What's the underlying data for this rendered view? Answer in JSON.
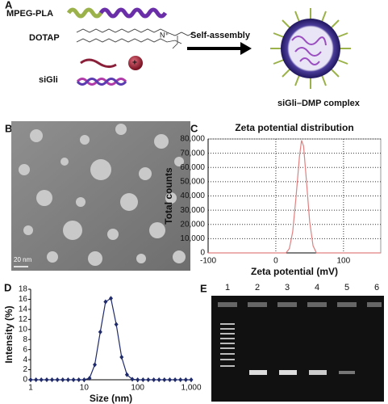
{
  "panels": {
    "A": {
      "label": "A",
      "mpeg": "MPEG-PLA",
      "dotap": "DOTAP",
      "sigli": "siGli",
      "arrow": "Self-assembly",
      "complex": "siGli–DMP complex"
    },
    "B": {
      "label": "B",
      "scale": "20 nm"
    },
    "C": {
      "label": "C"
    },
    "D": {
      "label": "D"
    },
    "E": {
      "label": "E",
      "lanes": [
        "1",
        "2",
        "3",
        "4",
        "5",
        "6"
      ]
    }
  },
  "chart_data": [
    {
      "type": "line",
      "title": "Zeta potential distribution",
      "x_label": "Zeta potential (mV)",
      "y_label": "Total counts",
      "x": [
        -100,
        15,
        20,
        25,
        30,
        35,
        38,
        41,
        45,
        50,
        55,
        60,
        155
      ],
      "values": [
        0,
        0,
        3000,
        15000,
        40000,
        68000,
        79000,
        75000,
        52000,
        22000,
        5000,
        0,
        0
      ],
      "color": "#e08080",
      "xlim": [
        -100,
        155
      ],
      "xticks": [
        -100,
        0,
        100
      ],
      "ylim": [
        0,
        80000
      ],
      "yticks": [
        0,
        {
          "value": 10000,
          "label": "10,000"
        },
        {
          "value": 20000,
          "label": "20,000"
        },
        {
          "value": 30000,
          "label": "30,000"
        },
        {
          "value": 40000,
          "label": "40,000"
        },
        {
          "value": 50000,
          "label": "50,000"
        },
        {
          "value": 60000,
          "label": "60,000"
        },
        {
          "value": 70000,
          "label": "70,000"
        },
        {
          "value": 80000,
          "label": "80,000"
        }
      ],
      "grid": true,
      "log_x": false,
      "markers": false
    },
    {
      "type": "line",
      "x_label": "Size (nm)",
      "y_label": "Intensity (%)",
      "x": [
        1,
        1.26,
        1.58,
        2,
        2.51,
        3.16,
        3.98,
        5.01,
        6.31,
        7.94,
        10,
        12.6,
        15.8,
        20,
        25.1,
        31.6,
        39.8,
        50.1,
        63.1,
        79.4,
        100,
        126,
        158,
        200,
        251,
        316,
        398,
        501,
        631,
        794,
        1000
      ],
      "values": [
        0,
        0,
        0,
        0,
        0,
        0,
        0,
        0,
        0,
        0,
        0,
        0.3,
        3,
        9.5,
        15.5,
        16.2,
        11,
        4.5,
        1,
        0.1,
        0,
        0,
        0,
        0,
        0,
        0,
        0,
        0,
        0,
        0,
        0
      ],
      "color": "#1f2a6b",
      "xlim": [
        1,
        1000
      ],
      "xticks": [
        1,
        10,
        100,
        {
          "value": 1000,
          "label": "1,000"
        }
      ],
      "ylim": [
        0,
        18
      ],
      "yticks": [
        0,
        2,
        4,
        6,
        8,
        10,
        12,
        14,
        16,
        18
      ],
      "grid": false,
      "log_x": true,
      "markers": true
    }
  ]
}
